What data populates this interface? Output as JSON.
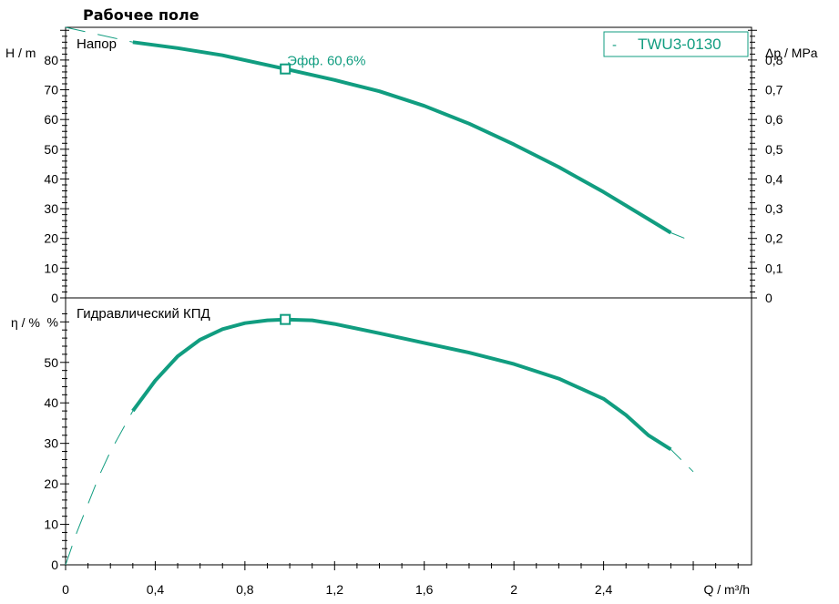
{
  "title": "Рабочее поле",
  "colors": {
    "curve": "#119d80",
    "axis": "#000000",
    "background": "#ffffff"
  },
  "chart_data": [
    {
      "type": "line",
      "panel": "head",
      "title": "Напор",
      "xlabel": "Q / m³/h",
      "ylabel": "H / m",
      "y2label": "Δp / MPa",
      "xlim": [
        0,
        3.06
      ],
      "ylim": [
        0,
        91
      ],
      "y2lim": [
        0,
        0.91
      ],
      "yticks": [
        "0",
        "10",
        "20",
        "30",
        "40",
        "50",
        "60",
        "70",
        "80"
      ],
      "y2ticks": [
        "0",
        "0,1",
        "0,2",
        "0,3",
        "0,4",
        "0,5",
        "0,6",
        "0,7",
        "0,8"
      ],
      "legend": {
        "label": "TWU3-0130",
        "marker": "-",
        "position": "top-right"
      },
      "annotation": {
        "text": "Эфф.  60,6%",
        "x": 0.98,
        "y": 77
      },
      "series": [
        {
          "name": "TWU3-0130",
          "points": [
            [
              0.3,
              86.0
            ],
            [
              0.5,
              84.0
            ],
            [
              0.7,
              81.6
            ],
            [
              0.98,
              77.0
            ],
            [
              1.2,
              73.3
            ],
            [
              1.4,
              69.5
            ],
            [
              1.6,
              64.6
            ],
            [
              1.8,
              58.6
            ],
            [
              2.0,
              51.6
            ],
            [
              2.2,
              44.0
            ],
            [
              2.4,
              35.6
            ],
            [
              2.6,
              26.5
            ],
            [
              2.7,
              21.9
            ],
            [
              2.8,
              18.9
            ]
          ],
          "dashed_below": 0.3,
          "dashed_above": 2.7,
          "dashed_start": [
            0.0,
            91.0
          ]
        }
      ],
      "operating_point": {
        "x": 0.98,
        "y": 77.0
      }
    },
    {
      "type": "line",
      "panel": "efficiency",
      "title": "Гидравлический КПД",
      "xlabel": "Q / m³/h",
      "ylabel": "η / %",
      "xlim": [
        0,
        3.06
      ],
      "ylim": [
        0,
        63
      ],
      "xticks": [
        "0",
        "0,4",
        "0,8",
        "1,2",
        "1,6",
        "2",
        "2,4",
        "Q / m³/h"
      ],
      "yticks": [
        "0",
        "10",
        "20",
        "30",
        "40",
        "50",
        "%"
      ],
      "series": [
        {
          "name": "TWU3-0130",
          "points": [
            [
              0.0,
              0.0
            ],
            [
              0.05,
              8.0
            ],
            [
              0.1,
              15.0
            ],
            [
              0.15,
              22.0
            ],
            [
              0.2,
              28.0
            ],
            [
              0.3,
              38.0
            ],
            [
              0.4,
              45.5
            ],
            [
              0.5,
              51.5
            ],
            [
              0.6,
              55.6
            ],
            [
              0.7,
              58.2
            ],
            [
              0.8,
              59.7
            ],
            [
              0.9,
              60.4
            ],
            [
              0.98,
              60.6
            ],
            [
              1.1,
              60.4
            ],
            [
              1.2,
              59.5
            ],
            [
              1.4,
              57.2
            ],
            [
              1.6,
              54.8
            ],
            [
              1.8,
              52.4
            ],
            [
              2.0,
              49.6
            ],
            [
              2.2,
              46.0
            ],
            [
              2.4,
              41.0
            ],
            [
              2.5,
              37.0
            ],
            [
              2.6,
              32.0
            ],
            [
              2.7,
              28.5
            ],
            [
              2.8,
              23.0
            ]
          ],
          "dashed_below": 0.3,
          "dashed_above": 2.7
        }
      ],
      "operating_point": {
        "x": 0.98,
        "y": 60.6
      }
    }
  ]
}
